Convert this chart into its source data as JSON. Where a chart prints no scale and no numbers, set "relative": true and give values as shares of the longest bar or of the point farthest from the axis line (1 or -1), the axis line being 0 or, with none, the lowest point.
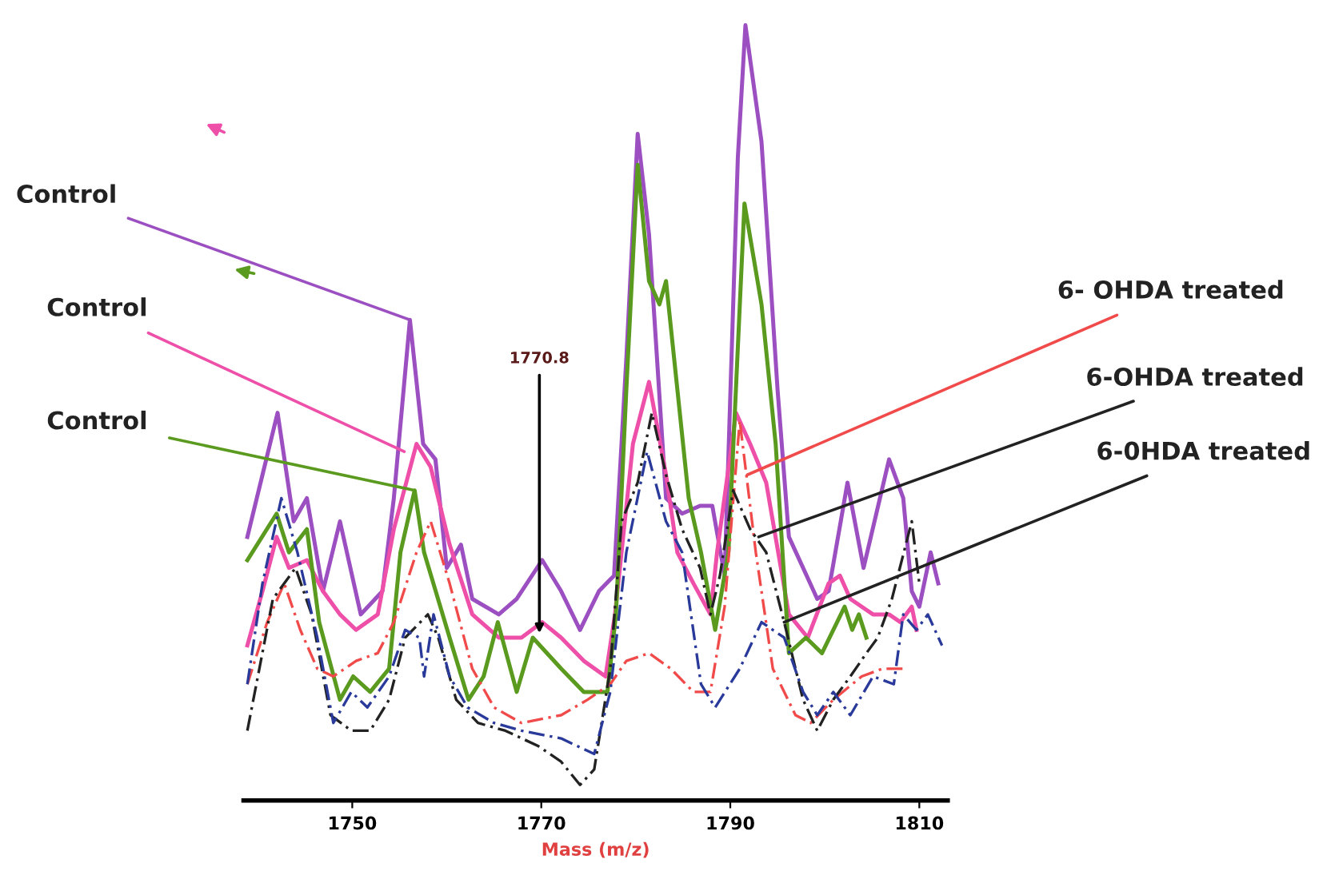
{
  "chart_data": {
    "type": "line",
    "relative": true,
    "xlabel": "Mass (m/z)",
    "xlim": [
      1738.5,
      1813
    ],
    "xticks": [
      1750,
      1770,
      1790,
      1810
    ],
    "grid": false,
    "marker": "none",
    "series": [
      {
        "color": "#9b4fc0",
        "line_style": "solid",
        "x": [
          1738.9,
          1742.1,
          1743.8,
          1745.2,
          1746.9,
          1748.7,
          1750.9,
          1753.2,
          1754.4,
          1756.1,
          1757.5,
          1758.8,
          1760.0,
          1761.5,
          1762.7,
          1765.5,
          1767.4,
          1770.1,
          1772.1,
          1774.1,
          1776.1,
          1777.7,
          1779.0,
          1780.2,
          1781.4,
          1783.2,
          1784.9,
          1786.8,
          1788.1,
          1789.4,
          1790.8,
          1791.6,
          1793.3,
          1795.0,
          1796.2,
          1799.2,
          1800.4,
          1802.4,
          1804.1,
          1806.8,
          1808.3,
          1809.2,
          1810.0,
          1811.2,
          1812.0
        ],
        "values": [
          0.34,
          0.5,
          0.36,
          0.39,
          0.27,
          0.36,
          0.24,
          0.27,
          0.39,
          0.62,
          0.46,
          0.44,
          0.3,
          0.33,
          0.26,
          0.24,
          0.26,
          0.31,
          0.27,
          0.22,
          0.27,
          0.29,
          0.57,
          0.86,
          0.73,
          0.39,
          0.37,
          0.38,
          0.38,
          0.29,
          0.83,
          1.0,
          0.85,
          0.53,
          0.34,
          0.26,
          0.27,
          0.41,
          0.3,
          0.44,
          0.39,
          0.27,
          0.25,
          0.32,
          0.28
        ]
      },
      {
        "color": "#ee4fa8",
        "line_style": "solid",
        "x": [
          1738.9,
          1740.5,
          1742.0,
          1743.3,
          1745.2,
          1746.9,
          1748.7,
          1750.4,
          1752.7,
          1754.4,
          1756.8,
          1758.3,
          1760.3,
          1762.7,
          1765.5,
          1767.9,
          1770.1,
          1772.1,
          1774.5,
          1776.8,
          1777.8,
          1779.7,
          1781.4,
          1783.2,
          1784.4,
          1786.1,
          1787.9,
          1788.6,
          1790.6,
          1792.1,
          1793.8,
          1796.2,
          1798.2,
          1800.4,
          1801.6,
          1802.7,
          1805.1,
          1806.8,
          1808.0,
          1809.2,
          1809.7
        ],
        "values": [
          0.2,
          0.27,
          0.34,
          0.3,
          0.31,
          0.27,
          0.24,
          0.22,
          0.24,
          0.35,
          0.46,
          0.43,
          0.33,
          0.24,
          0.21,
          0.21,
          0.23,
          0.21,
          0.18,
          0.16,
          0.24,
          0.46,
          0.54,
          0.42,
          0.32,
          0.28,
          0.24,
          0.32,
          0.5,
          0.46,
          0.41,
          0.24,
          0.21,
          0.28,
          0.29,
          0.26,
          0.24,
          0.24,
          0.23,
          0.25,
          0.22
        ]
      },
      {
        "color": "#5a9a1e",
        "line_style": "solid",
        "x": [
          1738.9,
          1742.0,
          1743.3,
          1745.2,
          1746.5,
          1748.7,
          1750.1,
          1751.9,
          1753.9,
          1755.1,
          1756.6,
          1757.6,
          1760.3,
          1762.3,
          1763.9,
          1765.4,
          1767.4,
          1769.1,
          1772.1,
          1774.5,
          1777.0,
          1777.9,
          1779.0,
          1780.2,
          1781.4,
          1782.5,
          1783.2,
          1784.4,
          1785.6,
          1786.9,
          1788.4,
          1789.8,
          1791.5,
          1793.3,
          1794.8,
          1796.2,
          1798.0,
          1799.7,
          1802.1,
          1802.9,
          1803.6,
          1804.4
        ],
        "values": [
          0.31,
          0.37,
          0.32,
          0.35,
          0.23,
          0.13,
          0.16,
          0.14,
          0.17,
          0.32,
          0.4,
          0.32,
          0.21,
          0.13,
          0.16,
          0.23,
          0.14,
          0.21,
          0.17,
          0.14,
          0.14,
          0.24,
          0.53,
          0.82,
          0.67,
          0.64,
          0.67,
          0.53,
          0.39,
          0.32,
          0.22,
          0.32,
          0.77,
          0.64,
          0.46,
          0.19,
          0.21,
          0.19,
          0.25,
          0.22,
          0.24,
          0.21
        ]
      },
      {
        "color": "#f04a4a",
        "line_style": "dashed",
        "x": [
          1738.9,
          1741.0,
          1742.8,
          1744.5,
          1746.3,
          1748.0,
          1750.4,
          1752.7,
          1754.4,
          1756.8,
          1758.3,
          1760.3,
          1762.7,
          1765.0,
          1767.9,
          1772.1,
          1774.9,
          1777.3,
          1779.0,
          1781.4,
          1783.7,
          1786.1,
          1787.9,
          1789.4,
          1791.0,
          1792.7,
          1794.5,
          1796.9,
          1798.5,
          1800.9,
          1803.9,
          1806.1,
          1808.6
        ],
        "values": [
          0.15,
          0.23,
          0.28,
          0.22,
          0.17,
          0.16,
          0.18,
          0.19,
          0.23,
          0.32,
          0.36,
          0.28,
          0.17,
          0.12,
          0.1,
          0.11,
          0.13,
          0.15,
          0.18,
          0.19,
          0.17,
          0.14,
          0.14,
          0.25,
          0.49,
          0.32,
          0.17,
          0.11,
          0.1,
          0.13,
          0.16,
          0.17,
          0.17
        ]
      },
      {
        "color": "#222222",
        "line_style": "dashed",
        "x": [
          1738.9,
          1741.6,
          1744.0,
          1745.7,
          1747.7,
          1749.9,
          1751.9,
          1753.9,
          1755.6,
          1758.0,
          1759.1,
          1761.0,
          1763.3,
          1766.2,
          1769.7,
          1772.1,
          1774.1,
          1775.6,
          1777.3,
          1778.5,
          1780.2,
          1781.7,
          1783.2,
          1784.9,
          1786.8,
          1787.9,
          1788.9,
          1790.3,
          1792.1,
          1793.8,
          1795.7,
          1797.7,
          1799.2,
          1800.9,
          1802.7,
          1804.4,
          1805.6,
          1807.1,
          1809.2,
          1810.0
        ],
        "values": [
          0.09,
          0.26,
          0.3,
          0.24,
          0.11,
          0.09,
          0.09,
          0.13,
          0.21,
          0.24,
          0.21,
          0.13,
          0.1,
          0.09,
          0.07,
          0.05,
          0.02,
          0.04,
          0.17,
          0.36,
          0.41,
          0.5,
          0.42,
          0.35,
          0.3,
          0.24,
          0.29,
          0.4,
          0.35,
          0.32,
          0.23,
          0.13,
          0.09,
          0.13,
          0.16,
          0.19,
          0.21,
          0.26,
          0.36,
          0.28
        ]
      },
      {
        "color": "#2a3a9a",
        "line_style": "dashed",
        "x": [
          1738.9,
          1740.5,
          1742.5,
          1744.2,
          1746.3,
          1748.0,
          1749.9,
          1751.6,
          1753.9,
          1755.6,
          1757.1,
          1757.6,
          1758.6,
          1760.3,
          1762.2,
          1765.0,
          1767.9,
          1772.1,
          1775.6,
          1777.3,
          1779.0,
          1781.2,
          1783.2,
          1784.9,
          1786.9,
          1788.4,
          1791.0,
          1793.3,
          1795.7,
          1797.7,
          1799.2,
          1800.9,
          1802.7,
          1805.1,
          1807.3,
          1808.3,
          1809.7,
          1810.9,
          1812.4
        ],
        "values": [
          0.15,
          0.28,
          0.39,
          0.32,
          0.21,
          0.1,
          0.14,
          0.12,
          0.16,
          0.22,
          0.21,
          0.16,
          0.24,
          0.16,
          0.12,
          0.1,
          0.09,
          0.08,
          0.06,
          0.14,
          0.32,
          0.45,
          0.36,
          0.32,
          0.15,
          0.12,
          0.17,
          0.23,
          0.21,
          0.14,
          0.11,
          0.14,
          0.11,
          0.16,
          0.15,
          0.24,
          0.22,
          0.24,
          0.2
        ]
      }
    ],
    "annotations": [
      {
        "text": "Control",
        "x": 1756.1,
        "y": 0.62
      },
      {
        "text": "Control",
        "x": 1755.5,
        "y": 0.45
      },
      {
        "text": "Control",
        "x": 1756.6,
        "y": 0.4
      },
      {
        "text": "1770.8",
        "x": 1769.8,
        "y": 0.21
      },
      {
        "text": "6- OHDA treated",
        "x": 1791.8,
        "y": 0.42
      },
      {
        "text": "6-OHDA treated",
        "x": 1793.0,
        "y": 0.34
      },
      {
        "text": "6-0HDA treated",
        "x": 1795.7,
        "y": 0.23
      }
    ]
  }
}
